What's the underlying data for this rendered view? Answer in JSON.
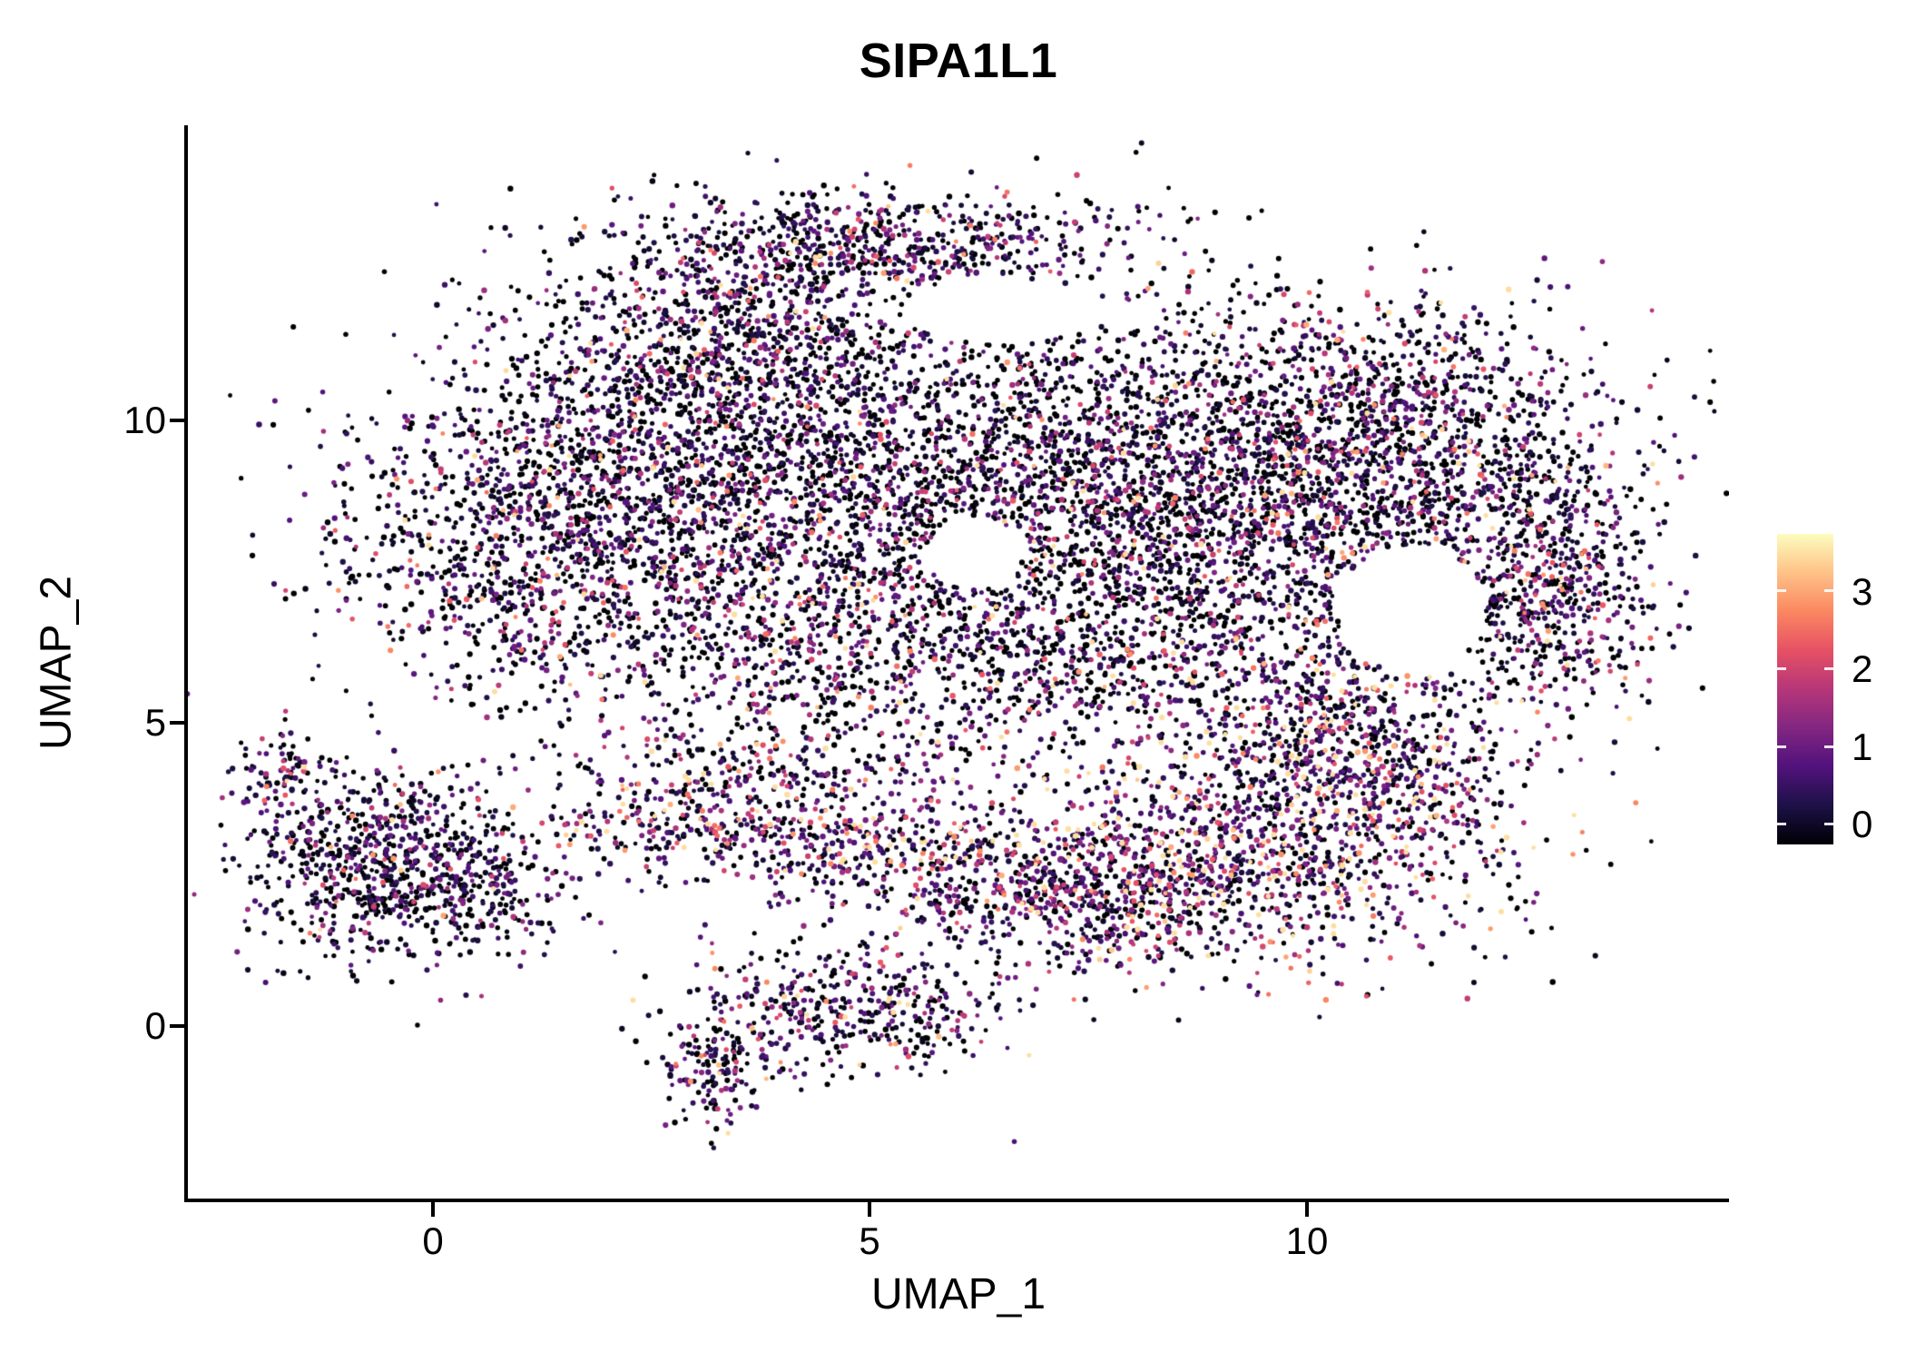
{
  "title": "SIPA1L1",
  "axes": {
    "x_label": "UMAP_1",
    "y_label": "UMAP_2",
    "x_tick_labels": [
      "0",
      "5",
      "10"
    ],
    "y_tick_labels": [
      "10",
      "5",
      "0"
    ]
  },
  "colorbar": {
    "tick_labels": [
      "3",
      "2",
      "1",
      "0"
    ]
  },
  "chart_data": {
    "type": "scatter",
    "title": "SIPA1L1",
    "xlabel": "UMAP_1",
    "ylabel": "UMAP_2",
    "xlim": [
      -2.82,
      14.84
    ],
    "ylim": [
      -2.85,
      14.84
    ],
    "x_ticks": [
      0,
      5,
      10
    ],
    "y_ticks": [
      0,
      5,
      10
    ],
    "grid": false,
    "legend_position": "right",
    "point_radius_px": 2.8,
    "seed": 42,
    "color_scale": {
      "name": "magma",
      "domain": [
        0,
        3.75
      ],
      "legend_ticks": [
        0,
        1,
        2,
        3
      ],
      "legend_bar_range": [
        -0.25,
        3.75
      ],
      "stops": [
        "#000004",
        "#1d1147",
        "#51127c",
        "#822681",
        "#b63679",
        "#e65164",
        "#fb8761",
        "#fec287",
        "#fcfdbf"
      ]
    },
    "holes": [
      {
        "x": 11.2,
        "y": 6.9,
        "rx": 0.85,
        "ry": 1.05
      },
      {
        "x": 6.5,
        "y": 11.8,
        "rx": 1.1,
        "ry": 0.55
      },
      {
        "x": 6.2,
        "y": 7.8,
        "rx": 0.55,
        "ry": 0.6
      }
    ],
    "clusters": [
      {
        "name": "main-blob-west",
        "x": 2.6,
        "y": 8.8,
        "sx": 1.7,
        "sy": 1.6,
        "n": 2000,
        "zero_frac": 0.38,
        "expr_scale": 0.8
      },
      {
        "name": "main-blob-center",
        "x": 6.0,
        "y": 9.4,
        "sx": 1.9,
        "sy": 1.6,
        "n": 1900,
        "zero_frac": 0.45,
        "expr_scale": 0.75
      },
      {
        "name": "main-blob-east",
        "x": 9.3,
        "y": 8.6,
        "sx": 1.7,
        "sy": 1.5,
        "n": 1900,
        "zero_frac": 0.38,
        "expr_scale": 0.85
      },
      {
        "name": "main-blob-far-east",
        "x": 12.0,
        "y": 8.1,
        "sx": 1.1,
        "sy": 1.5,
        "n": 850,
        "zero_frac": 0.33,
        "expr_scale": 0.9
      },
      {
        "name": "top-arm",
        "x": 4.9,
        "y": 12.9,
        "sx": 1.5,
        "sy": 0.45,
        "n": 650,
        "zero_frac": 0.3,
        "expr_scale": 0.9
      },
      {
        "name": "upper-left-lobe",
        "x": 3.4,
        "y": 11.5,
        "sx": 1.0,
        "sy": 0.85,
        "n": 520,
        "zero_frac": 0.33,
        "expr_scale": 0.85
      },
      {
        "name": "west-edge",
        "x": 0.9,
        "y": 7.8,
        "sx": 1.0,
        "sy": 1.2,
        "n": 480,
        "zero_frac": 0.35,
        "expr_scale": 0.9
      },
      {
        "name": "lower-main-west",
        "x": 4.6,
        "y": 6.2,
        "sx": 1.6,
        "sy": 0.9,
        "n": 620,
        "zero_frac": 0.35,
        "expr_scale": 0.95
      },
      {
        "name": "lower-main-east",
        "x": 7.8,
        "y": 6.1,
        "sx": 1.5,
        "sy": 0.9,
        "n": 600,
        "zero_frac": 0.4,
        "expr_scale": 0.9
      },
      {
        "name": "east-tip",
        "x": 13.0,
        "y": 7.2,
        "sx": 0.5,
        "sy": 1.1,
        "n": 280,
        "zero_frac": 0.28,
        "expr_scale": 1.0
      },
      {
        "name": "upper-right-lobe",
        "x": 10.6,
        "y": 10.3,
        "sx": 1.2,
        "sy": 0.95,
        "n": 620,
        "zero_frac": 0.42,
        "expr_scale": 0.8
      },
      {
        "name": "left-island-core",
        "x": -0.6,
        "y": 2.7,
        "sx": 0.8,
        "sy": 0.8,
        "n": 760,
        "zero_frac": 0.4,
        "expr_scale": 0.75
      },
      {
        "name": "left-island-tail",
        "x": -1.7,
        "y": 4.2,
        "sx": 0.28,
        "sy": 0.42,
        "n": 90,
        "zero_frac": 0.35,
        "expr_scale": 0.8
      },
      {
        "name": "left-island-east",
        "x": 0.6,
        "y": 2.2,
        "sx": 0.5,
        "sy": 0.4,
        "n": 140,
        "zero_frac": 0.4,
        "expr_scale": 0.8
      },
      {
        "name": "mid-band-west",
        "x": 2.8,
        "y": 3.4,
        "sx": 0.9,
        "sy": 0.45,
        "n": 240,
        "zero_frac": 0.22,
        "expr_scale": 1.2
      },
      {
        "name": "mid-band-center",
        "x": 4.9,
        "y": 2.9,
        "sx": 1.2,
        "sy": 0.55,
        "n": 420,
        "zero_frac": 0.2,
        "expr_scale": 1.25
      },
      {
        "name": "mid-band-east",
        "x": 6.9,
        "y": 2.4,
        "sx": 1.0,
        "sy": 0.5,
        "n": 330,
        "zero_frac": 0.25,
        "expr_scale": 1.2
      },
      {
        "name": "mid-band-upper",
        "x": 4.2,
        "y": 4.3,
        "sx": 1.3,
        "sy": 0.4,
        "n": 190,
        "zero_frac": 0.3,
        "expr_scale": 1.1
      },
      {
        "name": "right-lower-core",
        "x": 9.4,
        "y": 2.9,
        "sx": 1.4,
        "sy": 1.0,
        "n": 1150,
        "zero_frac": 0.2,
        "expr_scale": 1.3
      },
      {
        "name": "right-lower-north",
        "x": 10.1,
        "y": 5.0,
        "sx": 0.65,
        "sy": 0.6,
        "n": 260,
        "zero_frac": 0.2,
        "expr_scale": 1.3
      },
      {
        "name": "right-lower-east",
        "x": 11.2,
        "y": 4.2,
        "sx": 0.7,
        "sy": 0.75,
        "n": 300,
        "zero_frac": 0.25,
        "expr_scale": 1.2
      },
      {
        "name": "right-lower-west",
        "x": 7.6,
        "y": 1.8,
        "sx": 0.7,
        "sy": 0.5,
        "n": 200,
        "zero_frac": 0.3,
        "expr_scale": 1.1
      },
      {
        "name": "bottom-island",
        "x": 4.8,
        "y": 0.3,
        "sx": 0.95,
        "sy": 0.55,
        "n": 430,
        "zero_frac": 0.3,
        "expr_scale": 0.95
      },
      {
        "name": "bottom-island-tail",
        "x": 3.2,
        "y": -0.7,
        "sx": 0.3,
        "sy": 0.5,
        "n": 150,
        "zero_frac": 0.3,
        "expr_scale": 0.95
      }
    ]
  }
}
